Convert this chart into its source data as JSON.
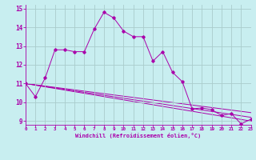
{
  "xlabel": "Windchill (Refroidissement éolien,°C)",
  "bg_color": "#c8eef0",
  "line_color": "#aa00aa",
  "grid_color": "#aacccc",
  "xlim": [
    0,
    23
  ],
  "ylim": [
    8.8,
    15.2
  ],
  "yticks": [
    9,
    10,
    11,
    12,
    13,
    14,
    15
  ],
  "xticks": [
    0,
    1,
    2,
    3,
    4,
    5,
    6,
    7,
    8,
    9,
    10,
    11,
    12,
    13,
    14,
    15,
    16,
    17,
    18,
    19,
    20,
    21,
    22,
    23
  ],
  "series": [
    {
      "x": [
        0,
        1,
        2,
        3,
        4,
        5,
        6,
        7,
        8,
        9,
        10,
        11,
        12,
        13,
        14,
        15,
        16,
        17,
        18,
        19,
        20,
        21,
        22,
        23
      ],
      "y": [
        11.0,
        10.3,
        11.3,
        12.8,
        12.8,
        12.7,
        12.7,
        13.9,
        14.8,
        14.5,
        13.8,
        13.5,
        13.5,
        12.2,
        12.7,
        11.6,
        11.1,
        9.65,
        9.7,
        9.6,
        9.3,
        9.4,
        8.85,
        9.1
      ]
    },
    {
      "x": [
        0,
        23
      ],
      "y": [
        11.0,
        9.0
      ]
    },
    {
      "x": [
        0,
        23
      ],
      "y": [
        11.0,
        9.2
      ]
    },
    {
      "x": [
        0,
        23
      ],
      "y": [
        11.0,
        9.45
      ]
    }
  ]
}
